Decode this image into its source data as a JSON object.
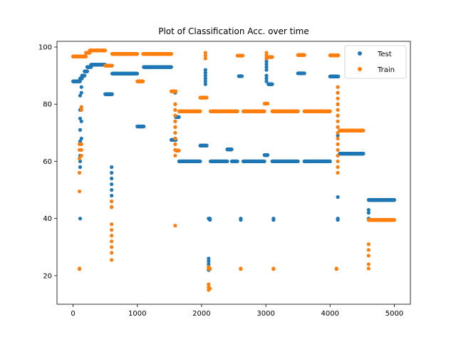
{
  "chart_data": {
    "type": "scatter",
    "title": "Plot of Classification Acc. over time",
    "xlabel": "",
    "ylabel": "",
    "xlim": [
      -250,
      5250
    ],
    "ylim": [
      10,
      102
    ],
    "x_ticks": [
      0,
      1000,
      2000,
      3000,
      4000,
      5000
    ],
    "y_ticks": [
      20,
      40,
      60,
      80,
      100
    ],
    "legend_position": "top-right",
    "grid": false,
    "series": [
      {
        "name": "Test",
        "color": "#1f77b4",
        "segments": [
          {
            "x_start": 0,
            "x_end": 110,
            "y": 88
          },
          {
            "x_start": 110,
            "x_end": 140,
            "y": 89
          },
          {
            "x_start": 140,
            "x_end": 180,
            "y": 90
          },
          {
            "x_start": 180,
            "x_end": 220,
            "y": 91.5
          },
          {
            "x_start": 220,
            "x_end": 280,
            "y": 93
          },
          {
            "x_start": 280,
            "x_end": 500,
            "y": 93.8
          },
          {
            "x_start": 500,
            "x_end": 610,
            "y": 83.5
          },
          {
            "x_start": 610,
            "x_end": 1000,
            "y": 90.7
          },
          {
            "x_start": 1000,
            "x_end": 1100,
            "y": 72.2
          },
          {
            "x_start": 1100,
            "x_end": 1530,
            "y": 93
          },
          {
            "x_start": 1530,
            "x_end": 1600,
            "y": 67.5
          },
          {
            "x_start": 1600,
            "x_end": 1650,
            "y": 75.5
          },
          {
            "x_start": 1650,
            "x_end": 1980,
            "y": 60
          },
          {
            "x_start": 1980,
            "x_end": 2080,
            "y": 65.5
          },
          {
            "x_start": 2140,
            "x_end": 2400,
            "y": 60
          },
          {
            "x_start": 2400,
            "x_end": 2470,
            "y": 64.2
          },
          {
            "x_start": 2470,
            "x_end": 2560,
            "y": 60
          },
          {
            "x_start": 2580,
            "x_end": 2630,
            "y": 89.8
          },
          {
            "x_start": 2650,
            "x_end": 2980,
            "y": 60
          },
          {
            "x_start": 2980,
            "x_end": 3030,
            "y": 62.2
          },
          {
            "x_start": 3040,
            "x_end": 3100,
            "y": 87
          },
          {
            "x_start": 3100,
            "x_end": 3500,
            "y": 60
          },
          {
            "x_start": 3500,
            "x_end": 3600,
            "y": 90.8
          },
          {
            "x_start": 3600,
            "x_end": 4000,
            "y": 60
          },
          {
            "x_start": 4000,
            "x_end": 4130,
            "y": 89.7
          },
          {
            "x_start": 4150,
            "x_end": 4520,
            "y": 62.7
          },
          {
            "x_start": 4600,
            "x_end": 5000,
            "y": 46.5
          }
        ],
        "scatter_columns": [
          {
            "x": 110,
            "y": [
              40,
              62,
              67,
              71,
              75,
              78,
              83,
              60,
              58
            ]
          },
          {
            "x": 130,
            "y": [
              68,
              74,
              79,
              84,
              86
            ]
          },
          {
            "x": 600,
            "y": [
              48,
              50,
              52,
              54,
              56,
              58,
              44,
              46
            ]
          },
          {
            "x": 1590,
            "y": [
              64,
              66,
              68,
              70,
              72,
              74,
              76,
              78,
              80,
              84
            ]
          },
          {
            "x": 2060,
            "y": [
              87,
              88,
              89,
              90,
              91,
              92
            ]
          },
          {
            "x": 2110,
            "y": [
              22,
              23,
              24,
              25,
              26,
              40
            ]
          },
          {
            "x": 2130,
            "y": [
              40,
              39.5
            ]
          },
          {
            "x": 2610,
            "y": [
              39.5,
              40
            ]
          },
          {
            "x": 3010,
            "y": [
              88,
              89,
              90,
              92,
              93,
              94,
              95,
              96
            ]
          },
          {
            "x": 3120,
            "y": [
              39.5,
              40
            ]
          },
          {
            "x": 4120,
            "y": [
              40,
              39.5,
              47.5,
              69,
              72,
              76,
              80,
              84,
              86
            ]
          },
          {
            "x": 4600,
            "y": [
              40,
              42,
              43
            ]
          }
        ]
      },
      {
        "name": "Train",
        "color": "#ff7f0e",
        "segments": [
          {
            "x_start": 0,
            "x_end": 200,
            "y": 96.7
          },
          {
            "x_start": 200,
            "x_end": 260,
            "y": 98
          },
          {
            "x_start": 260,
            "x_end": 500,
            "y": 98.8
          },
          {
            "x_start": 500,
            "x_end": 610,
            "y": 93.5
          },
          {
            "x_start": 610,
            "x_end": 1000,
            "y": 97.6
          },
          {
            "x_start": 1000,
            "x_end": 1090,
            "y": 88
          },
          {
            "x_start": 1090,
            "x_end": 1530,
            "y": 97.6
          },
          {
            "x_start": 1530,
            "x_end": 1600,
            "y": 84.5
          },
          {
            "x_start": 1600,
            "x_end": 1650,
            "y": 63.8
          },
          {
            "x_start": 1650,
            "x_end": 1980,
            "y": 77.5
          },
          {
            "x_start": 1980,
            "x_end": 2080,
            "y": 82.3
          },
          {
            "x_start": 2140,
            "x_end": 2400,
            "y": 77.5
          },
          {
            "x_start": 2400,
            "x_end": 2470,
            "y": 77.5
          },
          {
            "x_start": 2470,
            "x_end": 2560,
            "y": 77.5
          },
          {
            "x_start": 2560,
            "x_end": 2640,
            "y": 97
          },
          {
            "x_start": 2650,
            "x_end": 2980,
            "y": 77.5
          },
          {
            "x_start": 2980,
            "x_end": 3030,
            "y": 80.2
          },
          {
            "x_start": 3040,
            "x_end": 3100,
            "y": 96.5
          },
          {
            "x_start": 3100,
            "x_end": 3500,
            "y": 77.5
          },
          {
            "x_start": 3500,
            "x_end": 3600,
            "y": 97.2
          },
          {
            "x_start": 3600,
            "x_end": 4000,
            "y": 77.5
          },
          {
            "x_start": 4000,
            "x_end": 4130,
            "y": 97.1
          },
          {
            "x_start": 4150,
            "x_end": 4520,
            "y": 70.8
          },
          {
            "x_start": 4600,
            "x_end": 5000,
            "y": 39.5
          }
        ],
        "scatter_columns": [
          {
            "x": 100,
            "y": [
              22.3,
              22.5,
              49.5,
              56,
              61,
              64,
              66
            ]
          },
          {
            "x": 130,
            "y": [
              62,
              64,
              66,
              78,
              79
            ]
          },
          {
            "x": 600,
            "y": [
              25.5,
              28,
              30,
              32,
              34,
              36,
              38,
              44,
              46
            ]
          },
          {
            "x": 1590,
            "y": [
              37.5,
              62,
              64,
              66,
              68,
              70,
              72,
              74,
              76,
              78,
              80
            ]
          },
          {
            "x": 2060,
            "y": [
              96,
              97,
              98
            ]
          },
          {
            "x": 2110,
            "y": [
              15,
              16,
              17,
              22.5,
              23
            ]
          },
          {
            "x": 2130,
            "y": [
              22.3,
              22.5,
              15.5
            ]
          },
          {
            "x": 2610,
            "y": [
              22.3,
              22.5
            ]
          },
          {
            "x": 3010,
            "y": [
              96,
              97,
              98
            ]
          },
          {
            "x": 3120,
            "y": [
              22.3,
              22.5
            ]
          },
          {
            "x": 4100,
            "y": [
              22.3,
              22.5
            ]
          },
          {
            "x": 4120,
            "y": [
              86,
              84,
              82,
              80,
              78,
              76,
              74,
              72,
              70,
              68,
              66,
              64,
              62,
              60,
              58,
              56
            ]
          },
          {
            "x": 4600,
            "y": [
              22.5,
              24,
              27,
              29,
              31
            ]
          }
        ]
      }
    ]
  }
}
